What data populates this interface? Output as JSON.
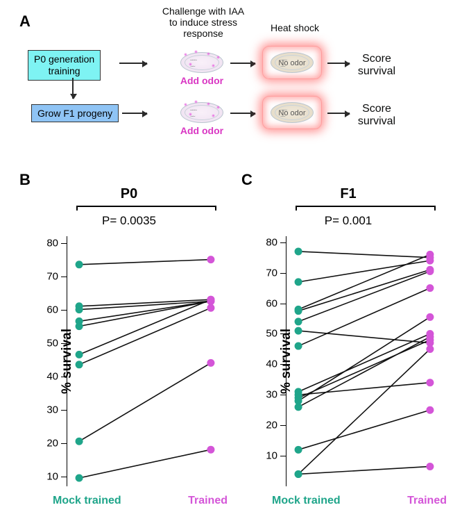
{
  "panelA": {
    "label": "A",
    "top_text1": "Challenge with IAA\nto induce stress\nresponse",
    "top_text2": "Heat shock",
    "box_p0": "P0 generation\ntraining",
    "box_f1": "Grow F1 progeny",
    "box_p0_bg": "#7ef3f3",
    "box_f1_bg": "#8fc4f5",
    "caption_addodor": "Add odor",
    "caption_noodor": "No odor",
    "caption_score": "Score\nsurvival",
    "color_addodor": "#d936c3",
    "color_noodor": "#4a4a4a"
  },
  "shared": {
    "mock_label": "Mock trained",
    "trained_label": "Trained",
    "mock_color": "#1fa58a",
    "trained_color": "#d455d8",
    "line_color": "#111111",
    "point_radius": 5.5,
    "line_width": 1.6,
    "axis_color": "#000000",
    "tick_fontsize": 15,
    "ylabel": "% survival"
  },
  "panelB": {
    "label": "B",
    "title": "P0",
    "pval": "P= 0.0035",
    "ylim": [
      7,
      82
    ],
    "yticks": [
      10,
      20,
      30,
      40,
      50,
      60,
      70,
      80
    ],
    "x_positions": [
      0.08,
      0.92
    ],
    "pairs": [
      {
        "mock": 73.5,
        "trained": 75
      },
      {
        "mock": 61,
        "trained": 63
      },
      {
        "mock": 60,
        "trained": 62.5
      },
      {
        "mock": 56.5,
        "trained": 62.5
      },
      {
        "mock": 55,
        "trained": 62.5
      },
      {
        "mock": 46.5,
        "trained": 63
      },
      {
        "mock": 43.5,
        "trained": 60.5
      },
      {
        "mock": 20.5,
        "trained": 44
      },
      {
        "mock": 9.5,
        "trained": 18
      }
    ]
  },
  "panelC": {
    "label": "C",
    "title": "F1",
    "pval": "P= 0.001",
    "ylim": [
      0,
      82
    ],
    "yticks": [
      10,
      20,
      30,
      40,
      50,
      60,
      70,
      80
    ],
    "x_positions": [
      0.08,
      0.92
    ],
    "pairs": [
      {
        "mock": 77,
        "trained": 75
      },
      {
        "mock": 67,
        "trained": 74
      },
      {
        "mock": 58,
        "trained": 76
      },
      {
        "mock": 57.5,
        "trained": 71
      },
      {
        "mock": 54,
        "trained": 70.5
      },
      {
        "mock": 51,
        "trained": 47
      },
      {
        "mock": 46,
        "trained": 65
      },
      {
        "mock": 31,
        "trained": 50
      },
      {
        "mock": 30,
        "trained": 34
      },
      {
        "mock": 29,
        "trained": 48
      },
      {
        "mock": 28,
        "trained": 55.5
      },
      {
        "mock": 26,
        "trained": 49
      },
      {
        "mock": 12,
        "trained": 25
      },
      {
        "mock": 4,
        "trained": 45
      },
      {
        "mock": 4,
        "trained": 6.5
      }
    ]
  }
}
